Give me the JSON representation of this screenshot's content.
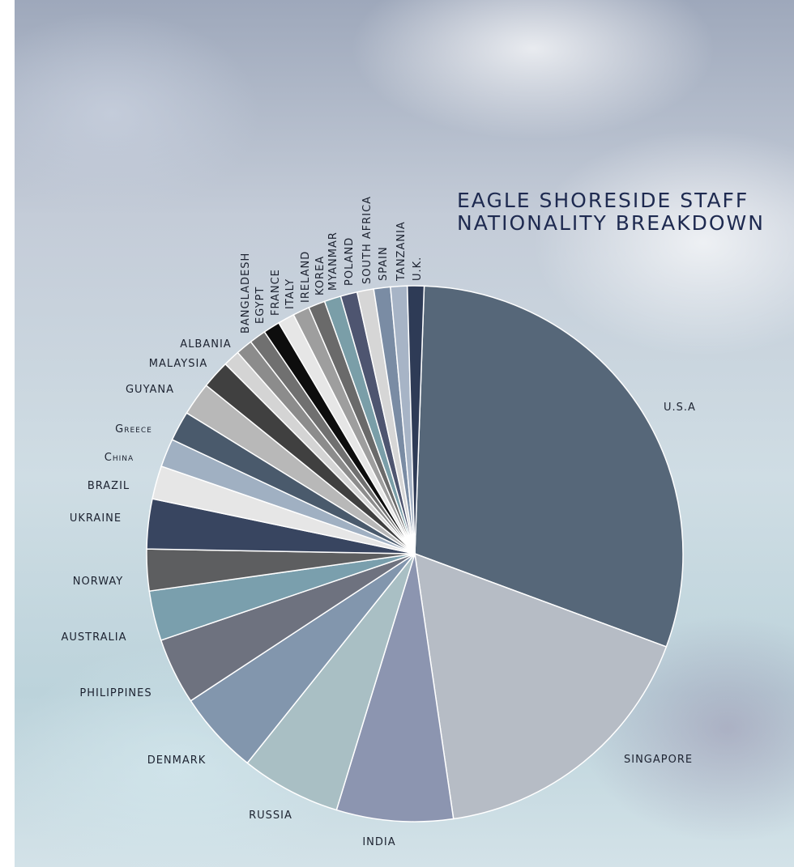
{
  "chart_data": {
    "type": "pie",
    "title": [
      "EAGLE SHORESIDE STAFF",
      "NATIONALITY BREAKDOWN"
    ],
    "categories": [
      "U.S.A",
      "SINGAPORE",
      "INDIA",
      "RUSSIA",
      "DENMARK",
      "PHILIPPINES",
      "AUSTRALIA",
      "NORWAY",
      "UKRAINE",
      "BRAZIL",
      "China",
      "Greece",
      "GUYANA",
      "MALAYSIA",
      "ALBANIA",
      "BANGLADESH",
      "EGYPT",
      "FRANCE",
      "ITALY",
      "IRELAND",
      "KOREA",
      "MYANMAR",
      "POLAND",
      "SOUTH AFRICA",
      "SPAIN",
      "TANZANIA",
      "U.K."
    ],
    "values": [
      30,
      17,
      7,
      6,
      5,
      4,
      3,
      2.5,
      3,
      2,
      1.7,
      1.8,
      2,
      1.7,
      1,
      1,
      1,
      1,
      1,
      1,
      1,
      1,
      1,
      1,
      1,
      1,
      1
    ],
    "colors": [
      "#566779",
      "#b6bcc5",
      "#8c95b0",
      "#a9bfc4",
      "#8296ad",
      "#6e727f",
      "#7a9fad",
      "#5d5e60",
      "#384560",
      "#e6e6e6",
      "#a0b0c2",
      "#4a5a6c",
      "#b8b8b8",
      "#404040",
      "#d4d4d4",
      "#8c8c8c",
      "#707070",
      "#0d0d0d",
      "#e6e6e6",
      "#9e9e9e",
      "#6a6a6a",
      "#7a9ea8",
      "#4e5570",
      "#d6d6d6",
      "#7a8ca4",
      "#a7b4c6",
      "#2e3b56"
    ]
  }
}
